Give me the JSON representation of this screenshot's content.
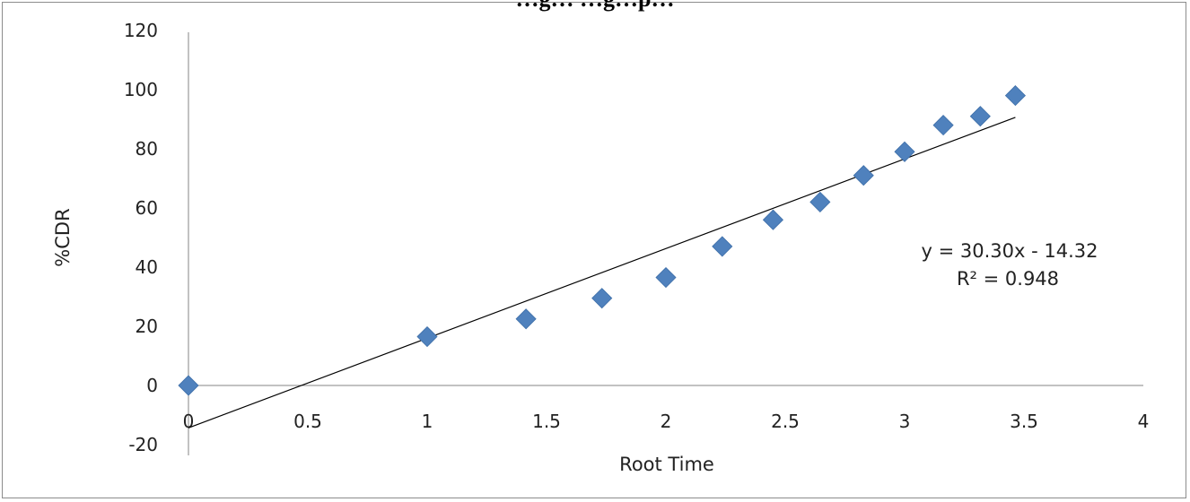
{
  "chart_data": {
    "type": "scatter",
    "title": "…g…                     …g…p…",
    "xlabel": "Root Time",
    "ylabel": "%CDR",
    "xlim": [
      0,
      4
    ],
    "ylim": [
      -20,
      120
    ],
    "x_ticks": [
      0,
      0.5,
      1,
      1.5,
      2,
      2.5,
      3,
      3.5,
      4
    ],
    "y_ticks": [
      -20,
      0,
      20,
      40,
      60,
      80,
      100,
      120
    ],
    "x_tick_labels": [
      "0",
      "0.5",
      "1",
      "1.5",
      "2",
      "2.5",
      "3",
      "3.5",
      "4"
    ],
    "y_tick_labels": [
      "-20",
      "0",
      "20",
      "40",
      "60",
      "80",
      "100",
      "120"
    ],
    "grid": false,
    "marker_color": "#4f81bd",
    "trendline_color": "#000000",
    "series": [
      {
        "x": [
          0,
          1,
          1.414,
          1.732,
          2,
          2.236,
          2.449,
          2.646,
          2.828,
          3,
          3.162,
          3.317,
          3.464
        ],
        "y": [
          0,
          16.5,
          22.5,
          29.5,
          36.5,
          47,
          56,
          62,
          71,
          79,
          88,
          91,
          98
        ]
      }
    ],
    "trendline": {
      "slope": 30.3,
      "intercept": -14.32,
      "x_range": [
        0,
        3.464
      ],
      "equation_label": "y = 30.30x - 14.32",
      "r2_label": "R² = 0.948"
    }
  }
}
